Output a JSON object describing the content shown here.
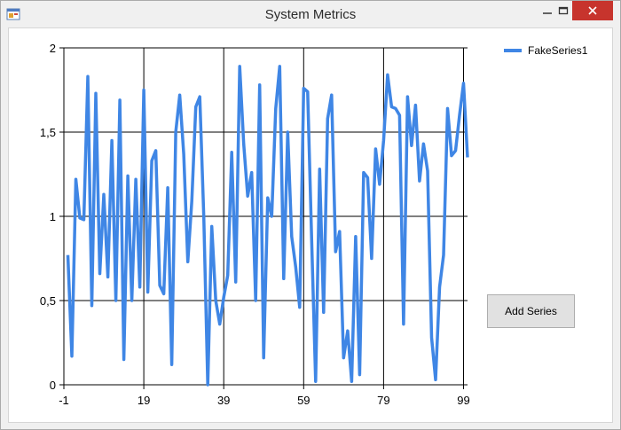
{
  "window": {
    "title": "System Metrics",
    "icons": {
      "app": "app-icon",
      "minimize": "minimize-icon",
      "maximize": "maximize-icon",
      "close": "close-icon"
    },
    "close_color": "#c7342d"
  },
  "controls": {
    "add_series_label": "Add Series"
  },
  "chart_data": {
    "type": "line",
    "xlim": [
      -1,
      100
    ],
    "ylim": [
      0,
      2
    ],
    "x_ticks": [
      "-1",
      "19",
      "39",
      "59",
      "79",
      "99"
    ],
    "y_ticks": [
      "0",
      "0,5",
      "1",
      "1,5",
      "2"
    ],
    "grid": true,
    "legend_position": "top-right",
    "series": [
      {
        "name": "FakeSeries1",
        "color": "#3f86e5",
        "x_start": 0,
        "values": [
          0.77,
          0.17,
          1.22,
          0.99,
          0.98,
          1.83,
          0.47,
          1.73,
          0.66,
          1.13,
          0.64,
          1.45,
          0.5,
          1.69,
          0.15,
          1.24,
          0.5,
          1.22,
          0.58,
          1.75,
          0.55,
          1.33,
          1.39,
          0.59,
          0.54,
          1.17,
          0.12,
          1.5,
          1.72,
          1.37,
          0.73,
          1.09,
          1.65,
          1.71,
          1.0,
          0.0,
          0.94,
          0.5,
          0.36,
          0.52,
          0.65,
          1.38,
          0.61,
          1.89,
          1.43,
          1.12,
          1.26,
          0.5,
          1.78,
          0.16,
          1.11,
          1.0,
          1.64,
          1.89,
          0.63,
          1.5,
          0.88,
          0.7,
          0.46,
          1.76,
          1.74,
          0.86,
          0.02,
          1.28,
          0.43,
          1.58,
          1.72,
          0.79,
          0.91,
          0.16,
          0.32,
          0.02,
          0.88,
          0.06,
          1.26,
          1.23,
          0.75,
          1.4,
          1.19,
          1.45,
          1.84,
          1.65,
          1.64,
          1.6,
          0.36,
          1.71,
          1.42,
          1.66,
          1.21,
          1.43,
          1.27,
          0.28,
          0.03,
          0.58,
          0.77,
          1.64,
          1.36,
          1.39,
          1.6,
          1.79,
          1.35
        ]
      }
    ]
  }
}
